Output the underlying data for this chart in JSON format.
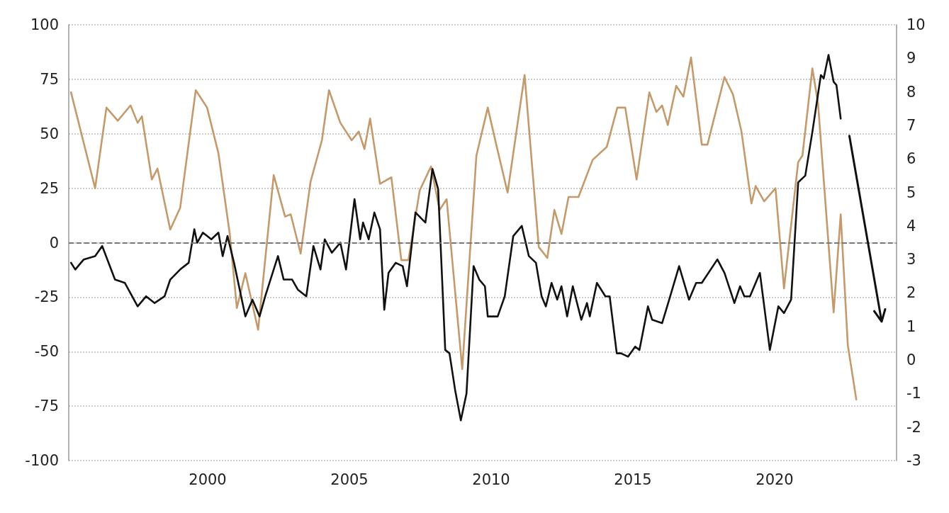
{
  "chart_data": {
    "type": "line",
    "xlim": [
      1995.1,
      2024.3
    ],
    "xticks": [
      2000,
      2005,
      2010,
      2015,
      2020
    ],
    "ylim": [
      -100,
      100
    ],
    "yticks": [
      -100,
      -75,
      -50,
      -25,
      0,
      25,
      50,
      75,
      100
    ],
    "y2lim": [
      -3,
      10
    ],
    "y2ticks": [
      -3,
      -2,
      -1,
      0,
      1,
      2,
      3,
      4,
      5,
      6,
      7,
      8,
      9,
      10
    ],
    "grid": "y",
    "line_style": "solid",
    "ref_lines": [
      {
        "axis": "y",
        "value": 0,
        "color": "#777777",
        "line_style": "dashed"
      }
    ],
    "series": [
      {
        "color": "#c49a6c",
        "axis": "y",
        "x": [
          1995.18,
          1996.03,
          1996.43,
          1996.83,
          1997.28,
          1997.53,
          1997.68,
          1998.03,
          1998.23,
          1998.68,
          1999.03,
          1999.58,
          1999.98,
          2000.38,
          2000.78,
          2001.03,
          2001.33,
          2001.78,
          2002.33,
          2002.73,
          2002.93,
          2003.28,
          2003.63,
          2004.03,
          2004.28,
          2004.68,
          2005.08,
          2005.33,
          2005.53,
          2005.73,
          2006.08,
          2006.48,
          2006.83,
          2007.08,
          2007.48,
          2007.88,
          2008.18,
          2008.43,
          2008.98,
          2009.48,
          2009.88,
          2010.18,
          2010.58,
          2011.18,
          2011.68,
          2011.98,
          2012.23,
          2012.48,
          2012.73,
          2013.08,
          2013.58,
          2014.08,
          2014.45,
          2014.73,
          2015.13,
          2015.58,
          2015.83,
          2016.03,
          2016.23,
          2016.53,
          2016.78,
          2017.05,
          2017.43,
          2017.63,
          2018.23,
          2018.53,
          2018.83,
          2019.18,
          2019.33,
          2019.63,
          2020.03,
          2020.33,
          2020.83,
          2020.98,
          2021.33,
          2021.53,
          2022.08,
          2022.33,
          2022.58,
          2022.88
        ],
        "values": [
          69,
          25,
          62,
          56,
          63,
          55,
          58,
          29,
          34,
          6,
          16,
          70,
          62,
          41,
          4,
          -30,
          -14,
          -40,
          31,
          12,
          13,
          -5,
          28,
          47,
          70,
          55,
          47,
          51,
          43,
          57,
          27,
          30,
          -8,
          -8,
          24,
          35,
          15,
          20,
          -58,
          40,
          62,
          45,
          23,
          77,
          -2,
          -7,
          15,
          4,
          21,
          21,
          38,
          44,
          62,
          62,
          29,
          69,
          60,
          63,
          54,
          72,
          67,
          85,
          45,
          45,
          76,
          68,
          51,
          18,
          26,
          19,
          25,
          -21,
          37,
          40,
          80,
          64,
          -32,
          13,
          -47,
          -72
        ]
      },
      {
        "color": "#111111",
        "axis": "y2",
        "x": [
          1995.18,
          1995.33,
          1995.63,
          1996.03,
          1996.28,
          1996.73,
          1997.08,
          1997.53,
          1997.83,
          1998.13,
          1998.48,
          1998.68,
          1999.03,
          1999.33,
          1999.53,
          1999.63,
          1999.83,
          2000.13,
          2000.38,
          2000.53,
          2000.7,
          2000.93,
          2001.33,
          2001.58,
          2001.83,
          2002.03,
          2002.48,
          2002.68,
          2002.98,
          2003.18,
          2003.48,
          2003.73,
          2003.98,
          2004.13,
          2004.38,
          2004.68,
          2004.88,
          2005.18,
          2005.38,
          2005.48,
          2005.68,
          2005.88,
          2006.08,
          2006.23,
          2006.38,
          2006.63,
          2006.88,
          2007.03,
          2007.33,
          2007.68,
          2007.93,
          2008.13,
          2008.38,
          2008.53,
          2008.73,
          2008.93,
          2009.13,
          2009.38,
          2009.58,
          2009.78,
          2009.88,
          2010.23,
          2010.48,
          2010.78,
          2011.08,
          2011.33,
          2011.58,
          2011.78,
          2011.93,
          2012.13,
          2012.33,
          2012.48,
          2012.68,
          2012.88,
          2013.18,
          2013.38,
          2013.48,
          2013.73,
          2014.03,
          2014.18,
          2014.43,
          2014.58,
          2014.83,
          2015.08,
          2015.23,
          2015.53,
          2015.68,
          2016.03,
          2016.28,
          2016.63,
          2016.98,
          2017.23,
          2017.43,
          2017.98,
          2018.23,
          2018.58,
          2018.78,
          2018.93,
          2019.13,
          2019.48,
          2019.83,
          2020.13,
          2020.33,
          2020.58,
          2020.83,
          2021.08,
          2021.33,
          2021.63,
          2021.73,
          2021.9,
          2022.08,
          2022.18,
          2022.33
        ],
        "values": [
          2.9,
          2.7,
          3.0,
          3.1,
          3.4,
          2.4,
          2.3,
          1.6,
          1.9,
          1.7,
          1.9,
          2.4,
          2.7,
          2.9,
          3.9,
          3.5,
          3.8,
          3.6,
          3.8,
          3.1,
          3.7,
          2.9,
          1.3,
          1.8,
          1.3,
          1.9,
          3.1,
          2.4,
          2.4,
          2.1,
          1.9,
          3.4,
          2.7,
          3.6,
          3.2,
          3.5,
          2.7,
          4.8,
          3.6,
          4.1,
          3.6,
          4.4,
          3.9,
          1.5,
          2.6,
          2.9,
          2.8,
          2.2,
          4.4,
          4.1,
          5.7,
          5.1,
          0.3,
          0.2,
          -0.9,
          -1.8,
          -1.0,
          2.8,
          2.4,
          2.2,
          1.3,
          1.3,
          1.9,
          3.7,
          4.0,
          3.1,
          2.9,
          1.9,
          1.6,
          2.3,
          1.8,
          2.2,
          1.3,
          2.2,
          1.2,
          1.7,
          1.3,
          2.3,
          1.9,
          1.9,
          0.2,
          0.2,
          0.1,
          0.4,
          0.3,
          1.6,
          1.2,
          1.1,
          1.8,
          2.8,
          1.8,
          2.3,
          2.3,
          3.0,
          2.6,
          1.7,
          2.2,
          1.9,
          1.9,
          2.6,
          0.3,
          1.6,
          1.4,
          1.8,
          5.3,
          5.5,
          6.8,
          8.5,
          8.4,
          9.1,
          8.3,
          8.2,
          7.2
        ]
      }
    ]
  }
}
